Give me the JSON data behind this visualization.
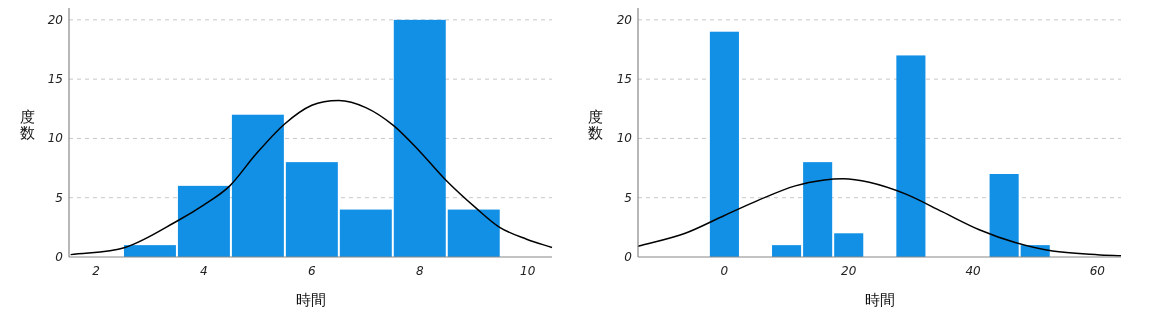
{
  "chart_data": [
    {
      "type": "histogram",
      "xlabel": "時間",
      "ylabel": "度数",
      "xlim": [
        1.5,
        10.45
      ],
      "xticks": [
        2,
        4,
        6,
        8,
        10
      ],
      "ylim": [
        0,
        21
      ],
      "yticks": [
        0,
        5,
        10,
        15,
        20
      ],
      "grid": "y",
      "bins": [
        2.5,
        3.5,
        4.5,
        5.5,
        6.5,
        7.5,
        8.5,
        9.5
      ],
      "series": [
        {
          "type": "histogram",
          "color": "#1290e6",
          "values": [
            1,
            6,
            12,
            8,
            4,
            20,
            4
          ]
        },
        {
          "type": "line",
          "color": "#000000",
          "x": [
            1.53,
            2.54,
            3.53,
            4.0,
            4.48,
            4.95,
            5.49,
            6.0,
            6.5,
            7.0,
            7.51,
            8.0,
            8.48,
            9.05,
            9.48,
            9.98,
            10.45
          ],
          "values": [
            0.2,
            0.8,
            3.1,
            4.4,
            6.0,
            8.6,
            11.2,
            12.8,
            13.2,
            12.6,
            11.1,
            8.9,
            6.5,
            4.1,
            2.5,
            1.5,
            0.8
          ]
        }
      ]
    },
    {
      "type": "histogram",
      "xlabel": "時間",
      "ylabel": "度数",
      "xlim": [
        -13.9,
        63.8
      ],
      "xticks": [
        0,
        20,
        40,
        60
      ],
      "ylim": [
        0,
        21
      ],
      "yticks": [
        0,
        5,
        10,
        15,
        20
      ],
      "grid": "y",
      "bins": [
        -2.5,
        2.5,
        7.5,
        12.5,
        17.5,
        22.5,
        27.5,
        32.5,
        37.5,
        42.5,
        47.5,
        52.5
      ],
      "series": [
        {
          "type": "histogram",
          "color": "#1290e6",
          "values": [
            19,
            0,
            1,
            8,
            2,
            0,
            17,
            0,
            0,
            7,
            1
          ]
        },
        {
          "type": "line",
          "color": "#000000",
          "x": [
            -13.9,
            -6.3,
            0,
            5.5,
            11.4,
            16.1,
            19.1,
            23.3,
            29.2,
            35.1,
            41.0,
            46.9,
            52.8,
            60,
            63.8
          ],
          "values": [
            0.9,
            2.0,
            3.5,
            4.8,
            6.0,
            6.5,
            6.6,
            6.3,
            5.3,
            3.8,
            2.3,
            1.2,
            0.5,
            0.2,
            0.1
          ]
        }
      ]
    }
  ]
}
